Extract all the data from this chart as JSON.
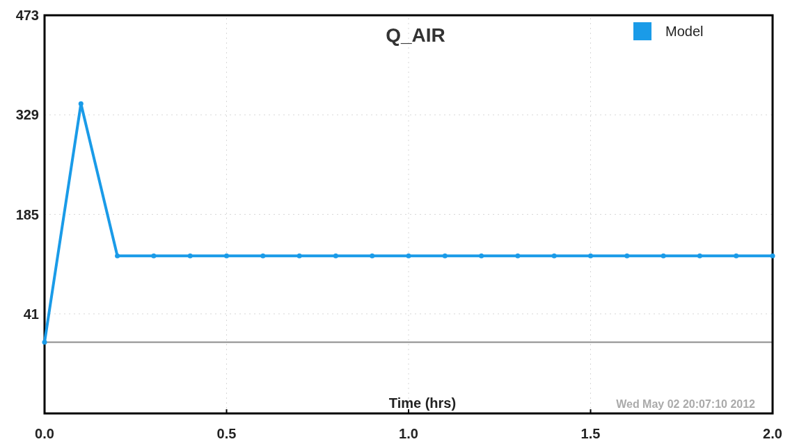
{
  "chart_data": {
    "type": "line",
    "title": "Q_AIR",
    "xlabel": "Time (hrs)",
    "annotations": [
      "Wed May 02 20:07:10 2012"
    ],
    "x": [
      0,
      0.1,
      0.2,
      0.3,
      0.4,
      0.5,
      0.6,
      0.7,
      0.8,
      0.9,
      1.0,
      1.1,
      1.2,
      1.3,
      1.4,
      1.5,
      1.6,
      1.7,
      1.8,
      1.9,
      2.0
    ],
    "series": [
      {
        "name": "Model",
        "color": "#1a9be8",
        "values": [
          0,
          345,
          125,
          125,
          125,
          125,
          125,
          125,
          125,
          125,
          125,
          125,
          125,
          125,
          125,
          125,
          125,
          125,
          125,
          125,
          125
        ]
      }
    ],
    "xlim": [
      0,
      2
    ],
    "xticks": [
      {
        "value": 0,
        "label": "0.0"
      },
      0.5,
      {
        "value": 1,
        "label": "1.0"
      },
      1.5,
      {
        "value": 2,
        "label": "2.0"
      }
    ],
    "ylim": [
      -103,
      473
    ],
    "yticks": [
      {
        "value": -103,
        "label": null
      },
      41,
      185,
      329,
      473
    ],
    "ref_lines": [
      {
        "axis": "y",
        "value": 0,
        "color": "#8c8c8c"
      }
    ],
    "grid": true,
    "legend": "top right",
    "marker": "circle",
    "line_style": "solid"
  }
}
